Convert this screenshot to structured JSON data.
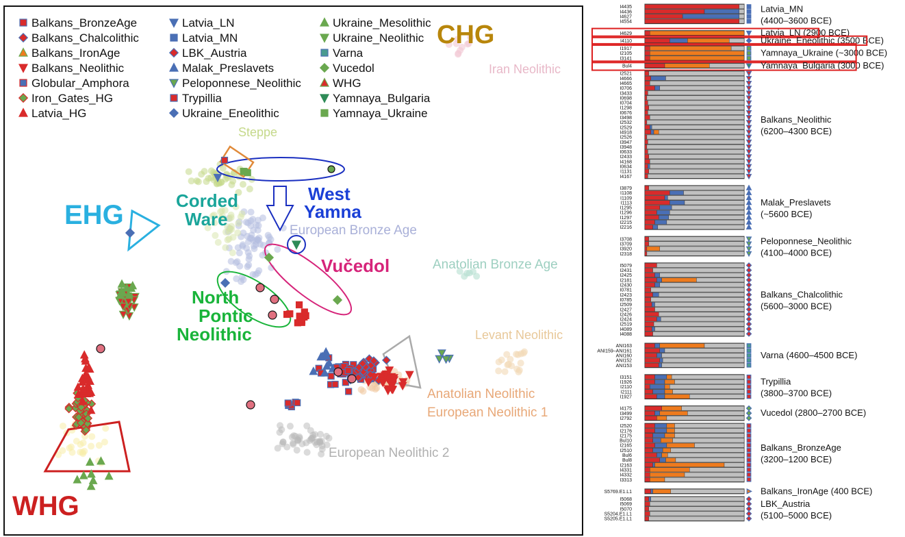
{
  "colors": {
    "red": "#d92b2b",
    "blue": "#4a6fb5",
    "green": "#6aa84f",
    "orange": "#ee7b1e",
    "grey": "#c0c0c0"
  },
  "legend": [
    {
      "name": "Balkans_BronzeAge",
      "shape": "square",
      "fill": "#d92b2b",
      "edge": "#4a6fb5"
    },
    {
      "name": "Balkans_Chalcolithic",
      "shape": "diamond",
      "fill": "#d92b2b",
      "edge": "#4a6fb5"
    },
    {
      "name": "Balkans_IronAge",
      "shape": "tri-up",
      "fill": "#ee7b1e",
      "edge": "#6aa84f"
    },
    {
      "name": "Balkans_Neolithic",
      "shape": "tri-down",
      "fill": "#d92b2b",
      "edge": "#d92b2b"
    },
    {
      "name": "Globular_Amphora",
      "shape": "square",
      "fill": "#4a6fb5",
      "edge": "#d92b2b"
    },
    {
      "name": "Iron_Gates_HG",
      "shape": "diamond",
      "fill": "#6aa84f",
      "edge": "#d92b2b"
    },
    {
      "name": "Latvia_HG",
      "shape": "tri-up",
      "fill": "#d92b2b",
      "edge": "#d92b2b"
    },
    {
      "name": "Latvia_LN",
      "shape": "tri-down",
      "fill": "#4a6fb5",
      "edge": "#4a6fb5"
    },
    {
      "name": "Latvia_MN",
      "shape": "square",
      "fill": "#4a6fb5",
      "edge": "#4a6fb5"
    },
    {
      "name": "LBK_Austria",
      "shape": "diamond",
      "fill": "#d92b2b",
      "edge": "#4a6fb5"
    },
    {
      "name": "Malak_Preslavets",
      "shape": "tri-up",
      "fill": "#4a6fb5",
      "edge": "#4a6fb5"
    },
    {
      "name": "Peloponnese_Neolithic",
      "shape": "tri-down",
      "fill": "#6aa84f",
      "edge": "#4a6fb5"
    },
    {
      "name": "Trypillia",
      "shape": "square",
      "fill": "#d92b2b",
      "edge": "#4a6fb5"
    },
    {
      "name": "Ukraine_Eneolithic",
      "shape": "diamond",
      "fill": "#4a6fb5",
      "edge": "#4a6fb5"
    },
    {
      "name": "Ukraine_Mesolithic",
      "shape": "tri-up",
      "fill": "#6aa84f",
      "edge": "#6aa84f"
    },
    {
      "name": "Ukraine_Neolithic",
      "shape": "tri-down",
      "fill": "#6aa84f",
      "edge": "#6aa84f"
    },
    {
      "name": "Varna",
      "shape": "square",
      "fill": "#4a9b8f",
      "edge": "#4a6fb5"
    },
    {
      "name": "Vucedol",
      "shape": "diamond",
      "fill": "#6aa84f",
      "edge": "#6aa84f"
    },
    {
      "name": "WHG",
      "shape": "tri-up",
      "fill": "#d92b2b",
      "edge": "#6aa84f"
    },
    {
      "name": "Yamnaya_Bulgaria",
      "shape": "tri-down",
      "fill": "#2e8b57",
      "edge": "#2e8b57"
    },
    {
      "name": "Yamnaya_Ukraine",
      "shape": "square",
      "fill": "#6aa84f",
      "edge": "#6aa84f"
    }
  ],
  "cluster_labels": [
    {
      "text": "CHG",
      "color": "#b8860b"
    },
    {
      "text": "Iran Neolithic",
      "color": "#e8b8c8"
    },
    {
      "text": "Steppe",
      "color": "#c5d98a"
    },
    {
      "text": "EHG",
      "color": "#2ab0e0"
    },
    {
      "text": "Corded",
      "color": "#1aa59a"
    },
    {
      "text": "Ware",
      "color": "#1aa59a"
    },
    {
      "text": "West",
      "color": "#1a3fd6"
    },
    {
      "text": "Yamna",
      "color": "#1a3fd6"
    },
    {
      "text": "European Bronze Age",
      "color": "#a9b0d8"
    },
    {
      "text": "Vučedol",
      "color": "#d6247a"
    },
    {
      "text": "Anatolian Bronze Age",
      "color": "#9dcfc0"
    },
    {
      "text": "North",
      "color": "#19b43a"
    },
    {
      "text": "Pontic",
      "color": "#19b43a"
    },
    {
      "text": "Neolithic",
      "color": "#19b43a"
    },
    {
      "text": "Levant Neolithic",
      "color": "#e8c899"
    },
    {
      "text": "Anatolian Neolithic",
      "color": "#e8a878"
    },
    {
      "text": "European Neolithic 1",
      "color": "#e8a878"
    },
    {
      "text": "European Neolithic 2",
      "color": "#b0b0b0"
    },
    {
      "text": "WHG",
      "color": "#cc2020"
    }
  ],
  "admixture": {
    "groups": [
      {
        "label": "Latvia_MN",
        "sub": "(4400–3600 BCE)",
        "highlight": false,
        "marker": "square",
        "mfill": "#4a6fb5",
        "samples": [
          "I4435",
          "I4436",
          "I4627",
          "I4554"
        ],
        "rows": [
          [
            0.95,
            0,
            0,
            0.05
          ],
          [
            0.6,
            0.35,
            0,
            0.05
          ],
          [
            0.38,
            0.57,
            0,
            0.05
          ],
          [
            0.95,
            0,
            0,
            0.05
          ]
        ]
      },
      {
        "label": "Latvia_LN (2900 BCE)",
        "sub": "",
        "highlight": true,
        "marker": "tri-down",
        "mfill": "#4a6fb5",
        "samples": [
          "I4629"
        ],
        "rows": [
          [
            0.05,
            0,
            0.95,
            0
          ]
        ]
      },
      {
        "label": "Ukraine_Eneolithic (3500 BCE)",
        "sub": "",
        "highlight": true,
        "marker": "diamond",
        "mfill": "#4a6fb5",
        "samples": [
          "I4110"
        ],
        "rows": [
          [
            0.25,
            0.18,
            0.42,
            0.15
          ]
        ]
      },
      {
        "label": "Yamnaya_Ukraine (~3000 BCE)",
        "sub": "",
        "highlight": true,
        "marker": "square",
        "mfill": "#6aa84f",
        "samples": [
          "I1917",
          "I2105",
          "I3141"
        ],
        "rows": [
          [
            0.05,
            0,
            0.82,
            0.13
          ],
          [
            0.05,
            0,
            0.95,
            0
          ],
          [
            0.05,
            0,
            0.95,
            0
          ]
        ]
      },
      {
        "label": "Yamnaya_Bulgaria (3000 BCE)",
        "sub": "",
        "highlight": true,
        "marker": "tri-down",
        "mfill": "#2e8b57",
        "samples": [
          "Bul4"
        ],
        "rows": [
          [
            0.2,
            0,
            0.45,
            0.35
          ]
        ]
      },
      {
        "label": "Balkans_Neolithic",
        "sub": "(6200–4300 BCE)",
        "highlight": false,
        "marker": "tri-down",
        "mfill": "#d92b2b",
        "samples": [
          "I2521",
          "I4666",
          "I4665",
          "I0706",
          "I3433",
          "I0698",
          "I0704",
          "I1298",
          "I0676",
          "I3498",
          "I2532",
          "I2529",
          "I4918",
          "I2526",
          "I3947",
          "I3948",
          "I0633",
          "I2433",
          "I4168",
          "I0634",
          "I1131",
          "I4167"
        ],
        "rows": [
          [
            0.04,
            0,
            0,
            0.96
          ],
          [
            0.06,
            0.15,
            0,
            0.79
          ],
          [
            0.05,
            0,
            0,
            0.95
          ],
          [
            0.1,
            0.05,
            0,
            0.85
          ],
          [
            0.03,
            0,
            0,
            0.97
          ],
          [
            0.02,
            0,
            0,
            0.98
          ],
          [
            0.03,
            0,
            0,
            0.97
          ],
          [
            0.04,
            0,
            0,
            0.96
          ],
          [
            0.03,
            0,
            0,
            0.97
          ],
          [
            0.05,
            0,
            0,
            0.95
          ],
          [
            0.02,
            0,
            0,
            0.98
          ],
          [
            0.05,
            0.02,
            0,
            0.93
          ],
          [
            0.06,
            0.03,
            0.05,
            0.86
          ],
          [
            0.02,
            0,
            0,
            0.98
          ],
          [
            0.03,
            0,
            0,
            0.97
          ],
          [
            0.02,
            0,
            0,
            0.98
          ],
          [
            0.03,
            0,
            0,
            0.97
          ],
          [
            0.04,
            0,
            0,
            0.96
          ],
          [
            0.05,
            0,
            0,
            0.95
          ],
          [
            0.03,
            0.02,
            0,
            0.95
          ],
          [
            0.04,
            0,
            0,
            0.96
          ],
          [
            0.03,
            0,
            0,
            0.97
          ]
        ]
      },
      {
        "label": "Malak_Preslavets",
        "sub": "(~5600 BCE)",
        "highlight": false,
        "marker": "tri-up",
        "mfill": "#4a6fb5",
        "samples": [
          "I3879",
          "I1108",
          "I1109",
          "I1113",
          "I1295",
          "I1296",
          "I1297",
          "I2215",
          "I2216"
        ],
        "rows": [
          [
            0.04,
            0,
            0,
            0.96
          ],
          [
            0.25,
            0.14,
            0,
            0.61
          ],
          [
            0.2,
            0.03,
            0,
            0.77
          ],
          [
            0.25,
            0.15,
            0,
            0.6
          ],
          [
            0.15,
            0.12,
            0,
            0.73
          ],
          [
            0.12,
            0.13,
            0,
            0.75
          ],
          [
            0.14,
            0.1,
            0,
            0.76
          ],
          [
            0.1,
            0.12,
            0,
            0.78
          ],
          [
            0.08,
            0.05,
            0,
            0.87
          ]
        ]
      },
      {
        "label": "Peloponnese_Neolithic",
        "sub": "(4100–4000 BCE)",
        "highlight": false,
        "marker": "tri-down",
        "mfill": "#6aa84f",
        "samples": [
          "I3708",
          "I3709",
          "I3920",
          "I2318"
        ],
        "rows": [
          [
            0.04,
            0,
            0,
            0.96
          ],
          [
            0.04,
            0,
            0,
            0.96
          ],
          [
            0.02,
            0,
            0.13,
            0.85
          ],
          [
            0.02,
            0,
            0,
            0.98
          ]
        ]
      },
      {
        "label": "Balkans_Chalcolithic",
        "sub": "(5600–3000 BCE)",
        "highlight": false,
        "marker": "diamond",
        "mfill": "#d92b2b",
        "samples": [
          "I5079",
          "I2431",
          "I2425",
          "I2181",
          "I2430",
          "I0781",
          "I2423",
          "I0785",
          "I2509",
          "I2427",
          "I2426",
          "I2424",
          "I2519",
          "I4089",
          "I4088"
        ],
        "rows": [
          [
            0.12,
            0,
            0,
            0.88
          ],
          [
            0.08,
            0,
            0,
            0.92
          ],
          [
            0.1,
            0.05,
            0,
            0.85
          ],
          [
            0.12,
            0.05,
            0.35,
            0.48
          ],
          [
            0.1,
            0.05,
            0,
            0.85
          ],
          [
            0.06,
            0,
            0,
            0.94
          ],
          [
            0.08,
            0.06,
            0,
            0.86
          ],
          [
            0.06,
            0,
            0,
            0.94
          ],
          [
            0.07,
            0.03,
            0,
            0.9
          ],
          [
            0.1,
            0,
            0,
            0.9
          ],
          [
            0.14,
            0,
            0,
            0.86
          ],
          [
            0.12,
            0.04,
            0,
            0.84
          ],
          [
            0.09,
            0,
            0,
            0.91
          ],
          [
            0.07,
            0.03,
            0,
            0.9
          ],
          [
            0.08,
            0,
            0,
            0.92
          ]
        ]
      },
      {
        "label": "Varna (4600–4500 BCE)",
        "sub": "",
        "highlight": false,
        "marker": "square",
        "mfill": "#4a9b8f",
        "samples": [
          "ANI163",
          "ANI159–ANI161",
          "ANI160",
          "ANI152",
          "ANI153"
        ],
        "rows": [
          [
            0.1,
            0.05,
            0.45,
            0.4
          ],
          [
            0.15,
            0.05,
            0,
            0.8
          ],
          [
            0.12,
            0.05,
            0,
            0.83
          ],
          [
            0.15,
            0.03,
            0,
            0.82
          ],
          [
            0.14,
            0.03,
            0,
            0.83
          ]
        ]
      },
      {
        "label": "Trypillia",
        "sub": "(3800–3700 BCE)",
        "highlight": false,
        "marker": "square",
        "mfill": "#d92b2b",
        "samples": [
          "I3151",
          "I1926",
          "I2110",
          "I2111",
          "I1927"
        ],
        "rows": [
          [
            0.1,
            0.12,
            0.05,
            0.73
          ],
          [
            0.1,
            0.1,
            0.1,
            0.7
          ],
          [
            0.05,
            0.15,
            0.05,
            0.75
          ],
          [
            0.08,
            0.12,
            0.08,
            0.72
          ],
          [
            0.12,
            0.08,
            0.25,
            0.55
          ]
        ]
      },
      {
        "label": "Vucedol (2800–2700 BCE)",
        "sub": "",
        "highlight": false,
        "marker": "diamond",
        "mfill": "#6aa84f",
        "samples": [
          "I4175",
          "I3499",
          "I2792"
        ],
        "rows": [
          [
            0.17,
            0,
            0.2,
            0.63
          ],
          [
            0.1,
            0.05,
            0.28,
            0.57
          ],
          [
            0.12,
            0,
            0.1,
            0.78
          ]
        ]
      },
      {
        "label": "Balkans_BronzeAge",
        "sub": "(3200–1200 BCE)",
        "highlight": false,
        "marker": "square",
        "mfill": "#d92b2b",
        "samples": [
          "I2520",
          "I2176",
          "I2175",
          "Bul10",
          "I2165",
          "I2510",
          "Bul6",
          "Bul8",
          "I2163",
          "I4331",
          "I4332",
          "I3313"
        ],
        "rows": [
          [
            0.1,
            0.12,
            0.08,
            0.7
          ],
          [
            0.1,
            0.12,
            0.08,
            0.7
          ],
          [
            0.08,
            0.12,
            0.1,
            0.7
          ],
          [
            0.08,
            0.08,
            0.12,
            0.72
          ],
          [
            0.1,
            0.12,
            0.28,
            0.5
          ],
          [
            0.08,
            0.1,
            0.08,
            0.74
          ],
          [
            0.12,
            0.05,
            0.06,
            0.77
          ],
          [
            0.15,
            0.06,
            0.1,
            0.69
          ],
          [
            0.08,
            0.02,
            0.7,
            0.2
          ],
          [
            0.05,
            0,
            0.4,
            0.55
          ],
          [
            0.05,
            0,
            0.35,
            0.6
          ],
          [
            0.05,
            0,
            0.15,
            0.8
          ]
        ]
      },
      {
        "label": "Balkans_IronAge (400 BCE)",
        "sub": "",
        "highlight": false,
        "marker": "tri-right",
        "mfill": "#ee7b1e",
        "samples": [
          "S5769.E1.L1"
        ],
        "rows": [
          [
            0.06,
            0.02,
            0.18,
            0.74
          ]
        ]
      },
      {
        "label": "LBK_Austria",
        "sub": "(5100–5000 BCE)",
        "highlight": false,
        "marker": "diamond",
        "mfill": "#d92b2b",
        "samples": [
          "I5068",
          "I5069",
          "I5070",
          "S5204.E1.L1",
          "S5205.E1.L1"
        ],
        "rows": [
          [
            0.04,
            0.02,
            0,
            0.94
          ],
          [
            0.05,
            0,
            0,
            0.95
          ],
          [
            0.04,
            0,
            0,
            0.96
          ],
          [
            0.05,
            0,
            0,
            0.95
          ],
          [
            0.04,
            0,
            0,
            0.96
          ]
        ]
      }
    ]
  }
}
